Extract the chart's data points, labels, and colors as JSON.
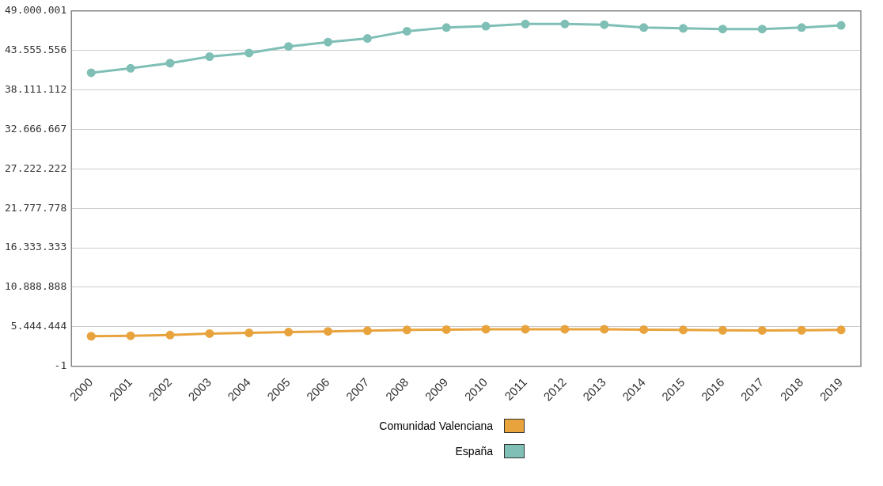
{
  "chart_data": {
    "type": "line",
    "categories": [
      "2000",
      "2001",
      "2002",
      "2003",
      "2004",
      "2005",
      "2006",
      "2007",
      "2008",
      "2009",
      "2010",
      "2011",
      "2012",
      "2013",
      "2014",
      "2015",
      "2016",
      "2017",
      "2018",
      "2019"
    ],
    "series": [
      {
        "name": "Comunidad Valenciana",
        "color": "#e8a33c",
        "values": [
          4140000,
          4200000,
          4300000,
          4500000,
          4600000,
          4700000,
          4800000,
          4900000,
          5000000,
          5050000,
          5100000,
          5100000,
          5100000,
          5100000,
          5050000,
          5000000,
          4960000,
          4940000,
          4960000,
          5000000
        ]
      },
      {
        "name": "España",
        "color": "#7fbfb5",
        "values": [
          40470000,
          41080000,
          41800000,
          42700000,
          43200000,
          44100000,
          44700000,
          45200000,
          46200000,
          46700000,
          46900000,
          47200000,
          47200000,
          47100000,
          46700000,
          46600000,
          46500000,
          46500000,
          46700000,
          47000000
        ]
      }
    ],
    "ylim": [
      -1,
      49000001
    ],
    "yticks": [
      {
        "value": -1,
        "label": "-1"
      },
      {
        "value": 5444444,
        "label": "5.444.444"
      },
      {
        "value": 10888888,
        "label": "10.888.888"
      },
      {
        "value": 16333333,
        "label": "16.333.333"
      },
      {
        "value": 21777778,
        "label": "21.777.778"
      },
      {
        "value": 27222222,
        "label": "27.222.222"
      },
      {
        "value": 32666667,
        "label": "32.666.667"
      },
      {
        "value": 38111112,
        "label": "38.111.112"
      },
      {
        "value": 43555556,
        "label": "43.555.556"
      },
      {
        "value": 49000001,
        "label": "49.000.001"
      }
    ],
    "grid": "y",
    "legend": "bottom",
    "marker": "circle",
    "line_style": "solid"
  }
}
